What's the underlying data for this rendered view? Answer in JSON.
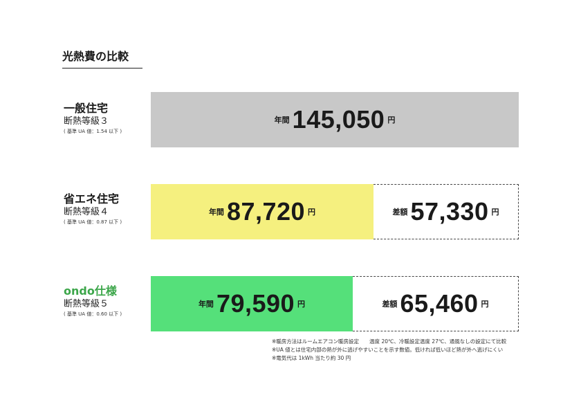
{
  "title": "光熱費の比較",
  "colors": {
    "general": "#c8c8c8",
    "eco": "#f5f07f",
    "ondo": "#55e07a",
    "ondo_label": "#3ca64a"
  },
  "chart_data": {
    "type": "bar",
    "orientation": "horizontal",
    "title": "光熱費の比較",
    "categories": [
      "一般住宅",
      "省エネ住宅",
      "ondo仕様"
    ],
    "values": [
      145050,
      87720,
      79590
    ],
    "differences": [
      null,
      57330,
      65460
    ],
    "xlim": [
      0,
      145050
    ],
    "rows": [
      {
        "name": "一般住宅",
        "grade": "断熱等級３",
        "note": "( 基準 UA 値：1.54 以下 )",
        "annual_label": "年間",
        "amount": 145050,
        "amount_text": "145,050",
        "yen": "円"
      },
      {
        "name": "省エネ住宅",
        "grade": "断熱等級４",
        "note": "( 基準 UA 値：0.87 以下 )",
        "annual_label": "年間",
        "amount": 87720,
        "amount_text": "87,720",
        "yen": "円",
        "diff_label": "差額",
        "diff": 57330,
        "diff_text": "57,330"
      },
      {
        "name": "ondo仕様",
        "grade": "断熱等級５",
        "note": "( 基準 UA 値：0.60 以下 )",
        "annual_label": "年間",
        "amount": 79590,
        "amount_text": "79,590",
        "yen": "円",
        "diff_label": "差額",
        "diff": 65460,
        "diff_text": "65,460"
      }
    ]
  },
  "notes": [
    "※暖房方法はルームエアコン暖房設定　　温度 20℃、冷暖設定温度 27℃、通風なしの設定にて比較",
    "※UA 値とは住宅内部の熱が外に逃げやすいことを示す数値。低ければ低いほど熱が外へ逃げにくい",
    "※電気代は 1kWh 当たり約 30 円"
  ]
}
